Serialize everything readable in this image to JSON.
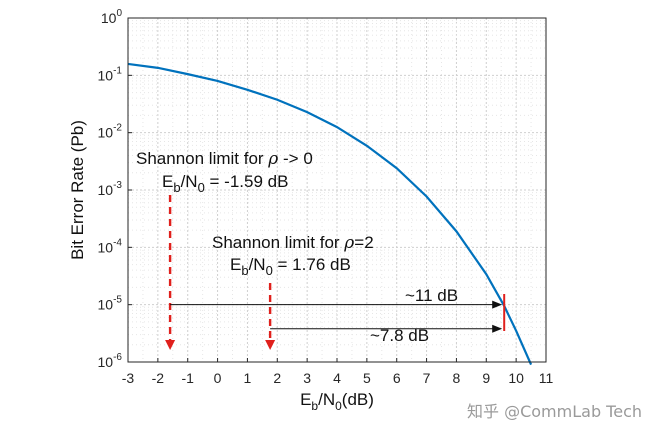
{
  "chart_data": {
    "type": "line",
    "ylabel": "Bit Error Rate (Pb)",
    "xlabel": {
      "main": "E",
      "sub1": "b",
      "mid": "/N",
      "sub2": "0",
      "tail": "(dB)"
    },
    "xlim": [
      -3,
      11
    ],
    "ylim": [
      1e-06,
      1
    ],
    "yscale": "log",
    "grid": true,
    "x_ticks": [
      "-3",
      "-2",
      "-1",
      "0",
      "1",
      "2",
      "3",
      "4",
      "5",
      "6",
      "7",
      "8",
      "9",
      "10",
      "11"
    ],
    "y_ticks": [
      {
        "base": "10",
        "exp": "0"
      },
      {
        "base": "10",
        "exp": "-1"
      },
      {
        "base": "10",
        "exp": "-2"
      },
      {
        "base": "10",
        "exp": "-3"
      },
      {
        "base": "10",
        "exp": "-4"
      },
      {
        "base": "10",
        "exp": "-5"
      },
      {
        "base": "10",
        "exp": "-6"
      }
    ],
    "series": [
      {
        "color": "#0072BD",
        "x": [
          -3,
          -2,
          -1,
          0,
          1,
          2,
          3,
          4,
          5,
          6,
          7,
          8,
          9,
          9.6,
          10,
          10.5
        ],
        "y": [
          0.158,
          0.135,
          0.105,
          0.08,
          0.056,
          0.0375,
          0.0228,
          0.0125,
          0.0059,
          0.0024,
          0.00077,
          0.00019,
          3.4e-05,
          9.5e-06,
          3.5e-06,
          9e-07
        ]
      }
    ],
    "annotations": [
      {
        "line1_prefix": "Shannon limit for ",
        "rho": "ρ",
        "line1_suffix": " -> 0",
        "line2": {
          "E": "E",
          "sub1": "b",
          "mid": "/N",
          "sub2": "0",
          "value": " = -1.59 dB"
        },
        "x": -1.59
      },
      {
        "line1_prefix": "Shannon limit for ",
        "rho": "ρ",
        "line1_suffix": "=2",
        "line2": {
          "E": "E",
          "sub1": "b",
          "mid": "/N",
          "sub2": "0",
          "value": " = 1.76 dB"
        },
        "x": 1.76
      }
    ],
    "gaps": [
      {
        "label": "~11 dB",
        "from_x": -1.59,
        "to_x": 9.6,
        "y": 1e-05
      },
      {
        "label": "~7.8 dB",
        "from_x": 1.76,
        "to_x": 9.6,
        "y": 3.8e-06
      }
    ],
    "marker": {
      "x": 9.6,
      "color": "#e0201c"
    },
    "arrow_color": "#e0201c"
  },
  "watermark": "知乎 @CommLab Tech"
}
